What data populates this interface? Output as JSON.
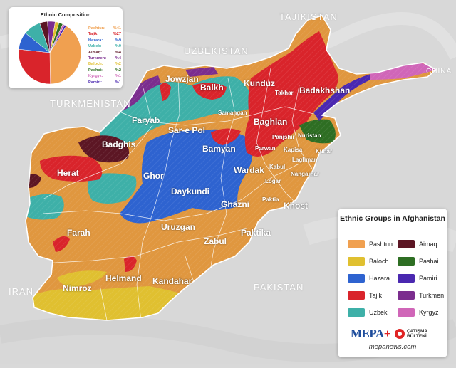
{
  "pie": {
    "title": "Ethnic Composition",
    "items": [
      {
        "name": "Pashtun:",
        "pct": "%41",
        "value": 41,
        "color": "#f0a050"
      },
      {
        "name": "Tajik:",
        "pct": "%27",
        "value": 27,
        "color": "#d9242b"
      },
      {
        "name": "Hazara:",
        "pct": "%9",
        "value": 9,
        "color": "#2e63d0"
      },
      {
        "name": "Uzbek:",
        "pct": "%9",
        "value": 9,
        "color": "#3eb0a8"
      },
      {
        "name": "Aimaq:",
        "pct": "%4",
        "value": 4,
        "color": "#5c1624"
      },
      {
        "name": "Turkmen:",
        "pct": "%4",
        "value": 4,
        "color": "#7b2d8e"
      },
      {
        "name": "Baloch:",
        "pct": "%2",
        "value": 2,
        "color": "#e0c030"
      },
      {
        "name": "Pashai:",
        "pct": "%2",
        "value": 2,
        "color": "#2e6e23"
      },
      {
        "name": "Kyrgyz:",
        "pct": "%1",
        "value": 1,
        "color": "#d066b8"
      },
      {
        "name": "Pamiri:",
        "pct": "%1",
        "value": 1,
        "color": "#4a28b0"
      }
    ]
  },
  "map": {
    "countries": [
      {
        "name": "TAJIKISTAN"
      },
      {
        "name": "UZBEKISTAN"
      },
      {
        "name": "TURKMENISTAN"
      },
      {
        "name": "CHINA"
      },
      {
        "name": "IRAN"
      },
      {
        "name": "PAKISTAN"
      }
    ],
    "provinces": [
      "Jowzjan",
      "Balkh",
      "Kunduz",
      "Takhar",
      "Badakhshan",
      "Faryab",
      "Samangan",
      "Sar-e Pol",
      "Baghlan",
      "Nuristan",
      "Panjshir",
      "Badghis",
      "Bamyan",
      "Parwan",
      "Kunar",
      "Kapisa",
      "Laghman",
      "Kabul",
      "Herat",
      "Ghor",
      "Wardak",
      "Nangarhar",
      "Logar",
      "Daykundi",
      "Ghazni",
      "Paktia",
      "Khost",
      "Farah",
      "Uruzgan",
      "Paktika",
      "Zabul",
      "Helmand",
      "Kandahar",
      "Nimroz"
    ]
  },
  "legend": {
    "title": "Ethnic Groups in Afghanistan",
    "items": [
      {
        "name": "Pashtun",
        "color": "#f0a050"
      },
      {
        "name": "Aimaq",
        "color": "#5c1624"
      },
      {
        "name": "Baloch",
        "color": "#e0c030"
      },
      {
        "name": "Pashai",
        "color": "#2e6e23"
      },
      {
        "name": "Hazara",
        "color": "#2e63d0"
      },
      {
        "name": "Pamiri",
        "color": "#4a28b0"
      },
      {
        "name": "Tajik",
        "color": "#d9242b"
      },
      {
        "name": "Turkmen",
        "color": "#7b2d8e"
      },
      {
        "name": "Uzbek",
        "color": "#3eb0a8"
      },
      {
        "name": "Kyrgyz",
        "color": "#d066b8"
      }
    ],
    "logo": {
      "mepa": "MEPA",
      "plus": "+",
      "brand_line1": "ÇATIŞMA",
      "brand_line2": "BÜLTENİ"
    },
    "site": "mepanews.com"
  }
}
